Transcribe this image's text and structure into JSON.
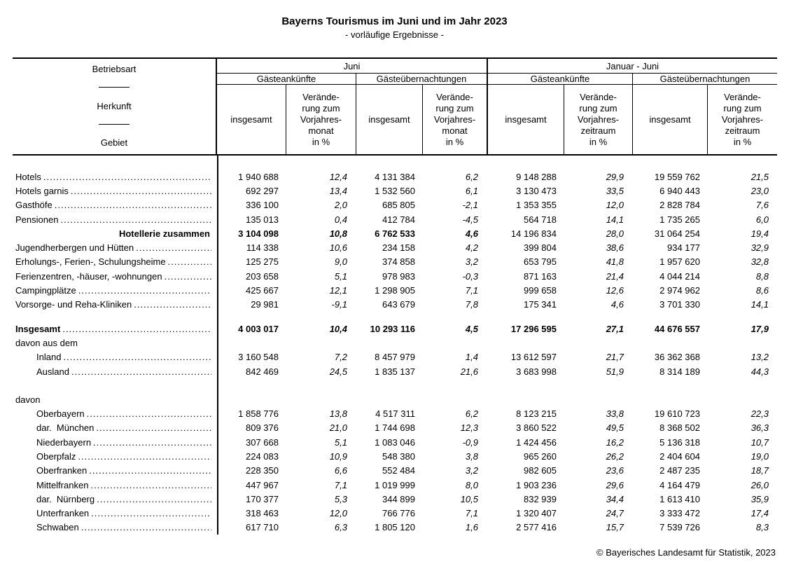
{
  "title": "Bayerns Tourismus im Juni und im Jahr 2023",
  "subtitle": "- vorläufige Ergebnisse -",
  "footer": {
    "copyright": "© Bayerisches Landesamt für Statistik, 2023"
  },
  "header": {
    "stub": {
      "line1": "Betriebsart",
      "line2": "Herkunft",
      "line3": "Gebiet"
    },
    "group_june": "Juni",
    "group_jan_june": "Januar - Juni",
    "sub_arrivals_june": "Gästeankünfte",
    "sub_nights_june": "Gästeübernachtungen",
    "sub_arrivals_year": "Gästeankünfte",
    "sub_nights_year": "Gästeübernachtungen",
    "col_total": "insgesamt",
    "col_change_month": "Verände-\nrung zum\nVorjahres-\nmonat\nin %",
    "col_change_period": "Verände-\nrung zum\nVorjahres-\nzeitraum\nin %"
  },
  "rows": [
    {
      "type": "data",
      "label": "Hotels",
      "leader": true,
      "values": [
        "1 940 688",
        "12,4",
        "4 131 384",
        "6,2",
        "9 148 288",
        "29,9",
        "19 559 762",
        "21,5"
      ]
    },
    {
      "type": "data",
      "label": "Hotels garnis",
      "leader": true,
      "values": [
        "692 297",
        "13,4",
        "1 532 560",
        "6,1",
        "3 130 473",
        "33,5",
        "6 940 443",
        "23,0"
      ]
    },
    {
      "type": "data",
      "label": "Gasthöfe",
      "leader": true,
      "values": [
        "336 100",
        "2,0",
        "685 805",
        "-2,1",
        "1 353 355",
        "12,0",
        "2 828 784",
        "7,6"
      ]
    },
    {
      "type": "data",
      "label": "Pensionen",
      "leader": true,
      "values": [
        "135 013",
        "0,4",
        "412 784",
        "-4,5",
        "564 718",
        "14,1",
        "1 735 265",
        "6,0"
      ]
    },
    {
      "type": "data",
      "label": "Hotellerie zusammen",
      "label_align": "right",
      "bold_label": true,
      "bold_values": "left4",
      "values": [
        "3 104 098",
        "10,8",
        "6 762 533",
        "4,6",
        "14 196 834",
        "28,0",
        "31 064 254",
        "19,4"
      ]
    },
    {
      "type": "data",
      "label": "Jugendherbergen und Hütten",
      "leader": true,
      "values": [
        "114 338",
        "10,6",
        "234 158",
        "4,2",
        "399 804",
        "38,6",
        "934 177",
        "32,9"
      ]
    },
    {
      "type": "data",
      "label": "Erholungs-, Ferien-, Schulungsheime",
      "leader": true,
      "values": [
        "125 275",
        "9,0",
        "374 858",
        "3,2",
        "653 795",
        "41,8",
        "1 957 620",
        "32,8"
      ]
    },
    {
      "type": "data",
      "label": "Ferienzentren, -häuser, -wohnungen",
      "leader": true,
      "values": [
        "203 658",
        "5,1",
        "978 983",
        "-0,3",
        "871 163",
        "21,4",
        "4 044 214",
        "8,8"
      ]
    },
    {
      "type": "data",
      "label": "Campingplätze",
      "leader": true,
      "values": [
        "425 667",
        "12,1",
        "1 298 905",
        "7,1",
        "999 658",
        "12,6",
        "2 974 962",
        "8,6"
      ]
    },
    {
      "type": "data",
      "label": "Vorsorge- und Reha-Kliniken",
      "leader": true,
      "values": [
        "29 981",
        "-9,1",
        "643 679",
        "7,8",
        "175 341",
        "4,6",
        "3 701 330",
        "14,1"
      ]
    },
    {
      "type": "spacer",
      "gap": 14
    },
    {
      "type": "data",
      "label": "Insgesamt",
      "bold_label": true,
      "bold_values": "all",
      "leader": true,
      "values": [
        "4 003 017",
        "10,4",
        "10 293 116",
        "4,5",
        "17 296 595",
        "27,1",
        "44 676 557",
        "17,9"
      ]
    },
    {
      "type": "data",
      "label": "davon aus dem"
    },
    {
      "type": "data",
      "label": "Inland",
      "indent": 1,
      "leader": true,
      "values": [
        "3 160 548",
        "7,2",
        "8 457 979",
        "1,4",
        "13 612 597",
        "21,7",
        "36 362 368",
        "13,2"
      ]
    },
    {
      "type": "data",
      "label": "Ausland",
      "indent": 1,
      "leader": true,
      "values": [
        "842 469",
        "24,5",
        "1 835 137",
        "21,6",
        "3 683 998",
        "51,9",
        "8 314 189",
        "44,3"
      ]
    },
    {
      "type": "spacer",
      "gap": 20
    },
    {
      "type": "data",
      "label": "davon"
    },
    {
      "type": "data",
      "label": "Oberbayern",
      "indent": 1,
      "leader": true,
      "values": [
        "1 858 776",
        "13,8",
        "4 517 311",
        "6,2",
        "8 123 215",
        "33,8",
        "19 610 723",
        "22,3"
      ]
    },
    {
      "type": "data",
      "label": "dar.  München",
      "indent": 1,
      "leader": true,
      "values": [
        "809 376",
        "21,0",
        "1 744 698",
        "12,3",
        "3 860 522",
        "49,5",
        "8 368 502",
        "36,3"
      ]
    },
    {
      "type": "data",
      "label": "Niederbayern",
      "indent": 1,
      "leader": true,
      "values": [
        "307 668",
        "5,1",
        "1 083 046",
        "-0,9",
        "1 424 456",
        "16,2",
        "5 136 318",
        "10,7"
      ]
    },
    {
      "type": "data",
      "label": "Oberpfalz",
      "indent": 1,
      "leader": true,
      "values": [
        "224 083",
        "10,9",
        "548 380",
        "3,8",
        "965 260",
        "26,2",
        "2 404 604",
        "19,0"
      ]
    },
    {
      "type": "data",
      "label": "Oberfranken",
      "indent": 1,
      "leader": true,
      "values": [
        "228 350",
        "6,6",
        "552 484",
        "3,2",
        "982 605",
        "23,6",
        "2 487 235",
        "18,7"
      ]
    },
    {
      "type": "data",
      "label": "Mittelfranken",
      "indent": 1,
      "leader": true,
      "values": [
        "447 967",
        "7,1",
        "1 019 999",
        "8,0",
        "1 903 236",
        "29,6",
        "4 164 479",
        "26,0"
      ]
    },
    {
      "type": "data",
      "label": "dar.  Nürnberg",
      "indent": 1,
      "leader": true,
      "values": [
        "170 377",
        "5,3",
        "344 899",
        "10,5",
        "832 939",
        "34,4",
        "1 613 410",
        "35,9"
      ]
    },
    {
      "type": "data",
      "label": "Unterfranken",
      "indent": 1,
      "leader": true,
      "values": [
        "318 463",
        "12,0",
        "766 776",
        "7,1",
        "1 320 407",
        "24,7",
        "3 333 472",
        "17,4"
      ]
    },
    {
      "type": "data",
      "label": "Schwaben",
      "indent": 1,
      "leader": true,
      "values": [
        "617 710",
        "6,3",
        "1 805 120",
        "1,6",
        "2 577 416",
        "15,7",
        "7 539 726",
        "8,3"
      ]
    }
  ]
}
